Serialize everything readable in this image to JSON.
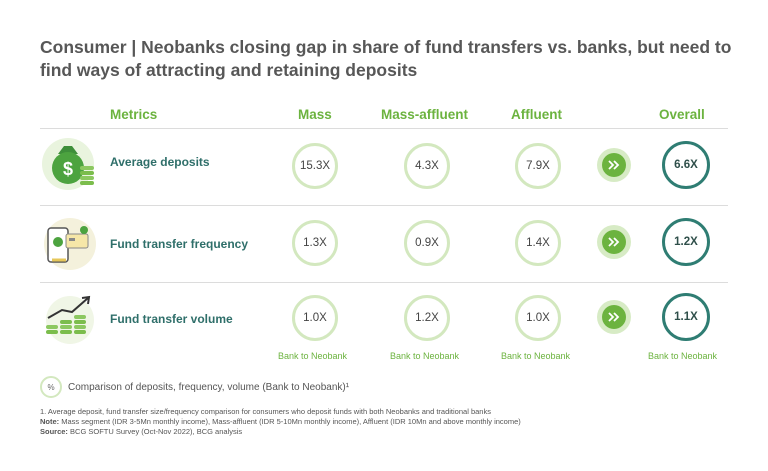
{
  "title": "Consumer | Neobanks closing gap in share of fund transfers vs. banks, but need to find ways of attracting and retaining deposits",
  "headers": {
    "metrics": "Metrics",
    "mass": "Mass",
    "mass_affluent": "Mass-affluent",
    "affluent": "Affluent",
    "overall": "Overall"
  },
  "rows": [
    {
      "label": "Average deposits",
      "icon": "money-bag-icon",
      "mass": "15.3X",
      "mass_affluent": "4.3X",
      "affluent": "7.9X",
      "overall": "6.6X"
    },
    {
      "label": "Fund transfer frequency",
      "icon": "phone-card-icon",
      "mass": "1.3X",
      "mass_affluent": "0.9X",
      "affluent": "1.4X",
      "overall": "1.2X"
    },
    {
      "label": "Fund transfer volume",
      "icon": "coin-stack-growth-icon",
      "mass": "1.0X",
      "mass_affluent": "1.2X",
      "affluent": "1.0X",
      "overall": "1.1X"
    }
  ],
  "sublabel": "Bank to Neobank",
  "legend": {
    "symbol": "%",
    "text": "Comparison of deposits, frequency, volume (Bank to Neobank)¹"
  },
  "footnotes": {
    "note1": "1. Average deposit, fund transfer size/frequency comparison for consumers who deposit funds with both Neobanks and traditional banks",
    "note_label": "Note:",
    "note_text": " Mass segment (IDR 3-5Mn monthly income), Mass-affluent (IDR 5-10Mn monthly income), Affluent (IDR 10Mn and above monthly income)",
    "source_label": "Source:",
    "source_text": " BCG SOFTU Survey (Oct-Nov 2022), BCG analysis"
  },
  "colors": {
    "accent_green": "#6cb33f",
    "teal": "#2f7d73",
    "light_green": "#d3e8bf"
  }
}
